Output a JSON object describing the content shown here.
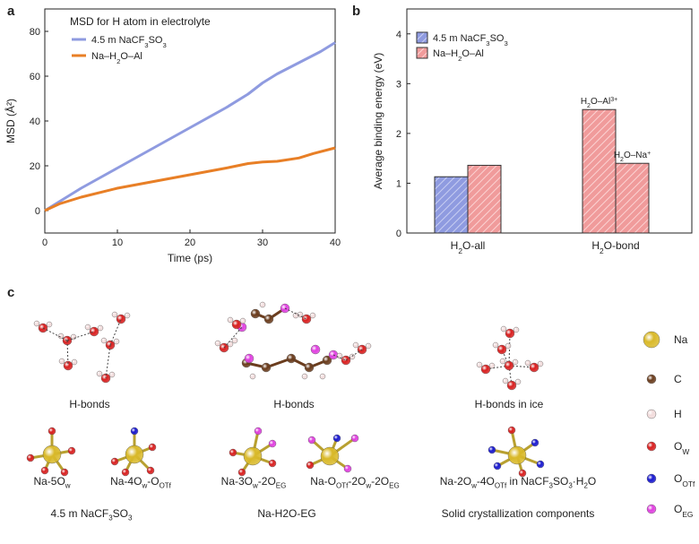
{
  "panels": {
    "a": "a",
    "b": "b",
    "c": "c"
  },
  "chart_data": [
    {
      "type": "line",
      "title": "MSD for H atom in electrolyte",
      "xlabel": "Time (ps)",
      "ylabel": "MSD (Å²)",
      "xlim": [
        0,
        40
      ],
      "ylim": [
        -10,
        90
      ],
      "xticks": [
        0,
        10,
        20,
        30,
        40
      ],
      "yticks": [
        0,
        20,
        40,
        60,
        80
      ],
      "legend": "top-left",
      "grid": false,
      "series": [
        {
          "name": "4.5 m NaCF3SO3",
          "color": "#8f9be0",
          "x": [
            0,
            2,
            5,
            10,
            15,
            20,
            25,
            28,
            30,
            32,
            35,
            38,
            40
          ],
          "y": [
            0,
            4,
            10,
            19,
            28,
            37,
            46,
            52,
            57,
            61,
            66,
            71,
            75
          ]
        },
        {
          "name": "Na–H2O–Al",
          "color": "#e87f26",
          "x": [
            0,
            2,
            5,
            10,
            15,
            20,
            25,
            28,
            30,
            32,
            35,
            37,
            40
          ],
          "y": [
            0,
            3,
            6,
            10,
            13,
            16,
            19,
            21,
            21.7,
            22,
            23.5,
            25.5,
            28
          ]
        }
      ]
    },
    {
      "type": "bar",
      "title": "",
      "xlabel": "",
      "ylabel": "Average binding energy (eV)",
      "ylim": [
        0,
        4.5
      ],
      "yticks": [
        0,
        1,
        2,
        3,
        4
      ],
      "categories": [
        "H2O-all",
        "H2O-bond"
      ],
      "legend": "top-left",
      "series": [
        {
          "name": "4.5 m NaCF3SO3",
          "color": "#8f9be0",
          "values": [
            1.13,
            null
          ]
        },
        {
          "name": "Na–H2O–Al",
          "color": "#f09b9b",
          "values": [
            1.36,
            null
          ]
        }
      ],
      "bond_bars": [
        {
          "label": "H2O–Al3+",
          "value": 2.48,
          "color": "#f09b9b"
        },
        {
          "label": "H2O–Na+",
          "value": 1.4,
          "color": "#f09b9b"
        }
      ]
    }
  ],
  "panel_c": {
    "captions": {
      "hb1": "H-bonds",
      "hb2": "H-bonds",
      "hb3": "H-bonds in ice",
      "na5": "Na-5Ow",
      "na4": "Na-4Ow-OOTf",
      "na3": "Na-3Ow-2OEG",
      "naotf": "Na-OOTf-2Ow-2OEG",
      "na2": "Na-2Ow-4OOTf in NaCF3SO3·H2O",
      "grp1": "4.5 m NaCF3SO3",
      "grp2": "Na-H2O-EG",
      "grp3": "Solid crystallization components"
    },
    "legend": [
      {
        "label": "Na",
        "color": "#d9b92a"
      },
      {
        "label": "C",
        "color": "#6b3d1e"
      },
      {
        "label": "H",
        "color": "#f2dcdc"
      },
      {
        "label": "Ow",
        "color": "#d92020"
      },
      {
        "label": "OOTf",
        "color": "#1a1ad0"
      },
      {
        "label": "OEG",
        "color": "#e040e0"
      }
    ]
  }
}
